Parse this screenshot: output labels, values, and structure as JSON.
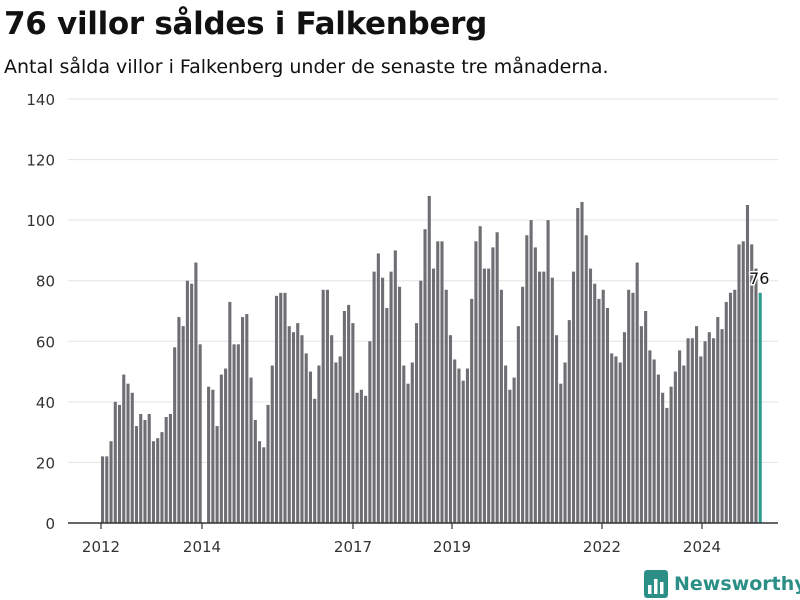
{
  "header": {
    "title": "76 villor såldes i Falkenberg",
    "subtitle": "Antal sålda villor i Falkenberg under de senaste tre månaderna."
  },
  "colors": {
    "bar": "#6e6e73",
    "highlight": "#2b9c8e",
    "grid": "#e3e3e3",
    "axis": "#333333",
    "brand": "#2b8f86"
  },
  "brand": {
    "name": "Newsworthy",
    "icon": "bar-chart-logo-icon"
  },
  "chart_data": {
    "type": "bar",
    "title": "76 villor såldes i Falkenberg",
    "subtitle": "Antal sålda villor i Falkenberg under de senaste tre månaderna.",
    "xlabel": "",
    "ylabel": "",
    "ylim": [
      0,
      140
    ],
    "yticks": [
      0,
      20,
      40,
      60,
      80,
      100,
      120,
      140
    ],
    "xticks": [
      "2012",
      "2014",
      "2017",
      "2019",
      "2022",
      "2024"
    ],
    "grid": true,
    "highlight_label": "76",
    "values": [
      22,
      22,
      27,
      40,
      39,
      49,
      46,
      43,
      32,
      36,
      34,
      36,
      27,
      28,
      30,
      35,
      36,
      58,
      68,
      65,
      80,
      79,
      86,
      59,
      0,
      45,
      44,
      32,
      49,
      51,
      73,
      59,
      59,
      68,
      69,
      48,
      34,
      27,
      25,
      39,
      52,
      75,
      76,
      76,
      65,
      63,
      66,
      62,
      56,
      50,
      41,
      52,
      77,
      77,
      62,
      53,
      55,
      70,
      72,
      66,
      43,
      44,
      42,
      60,
      83,
      89,
      81,
      71,
      83,
      90,
      78,
      52,
      46,
      53,
      66,
      80,
      97,
      108,
      84,
      93,
      93,
      77,
      62,
      54,
      51,
      47,
      51,
      74,
      93,
      98,
      84,
      84,
      91,
      96,
      77,
      52,
      44,
      48,
      65,
      78,
      95,
      100,
      91,
      83,
      83,
      100,
      81,
      62,
      46,
      53,
      67,
      83,
      104,
      106,
      95,
      84,
      79,
      74,
      77,
      71,
      56,
      55,
      53,
      63,
      77,
      76,
      86,
      65,
      70,
      57,
      54,
      49,
      43,
      38,
      45,
      50,
      57,
      52,
      61,
      61,
      65,
      55,
      60,
      63,
      61,
      68,
      64,
      73,
      76,
      77,
      92,
      93,
      105,
      92,
      84,
      76
    ]
  }
}
